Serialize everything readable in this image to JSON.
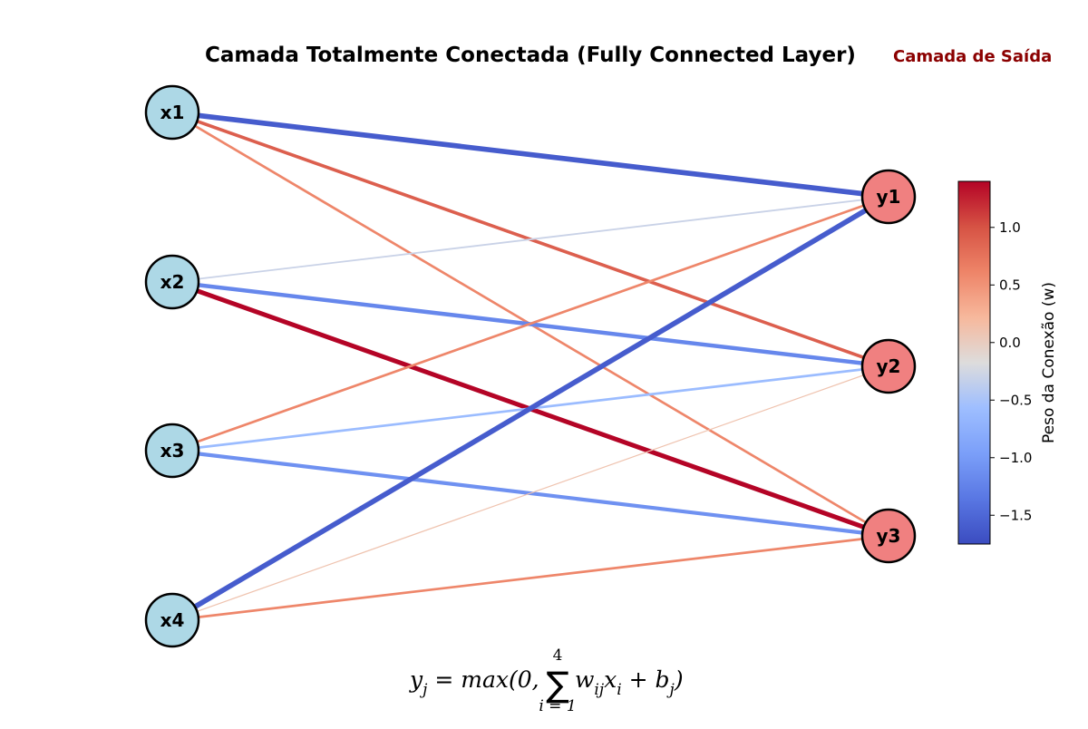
{
  "title": "Camada Totalmente Conectada (Fully Connected Layer)",
  "output_layer_label": "Camada de Saída",
  "colors": {
    "input_node_fill": "#add8e6",
    "output_node_fill": "#f08080",
    "output_label_color": "#8b0000",
    "node_stroke": "#000000"
  },
  "colorbar": {
    "label": "Peso da Conexão (w)",
    "colormap": "coolwarm",
    "vmin": -1.75,
    "vmax": 1.4,
    "ticks": [
      1.0,
      0.5,
      0.0,
      -0.5,
      -1.0,
      -1.5
    ],
    "tick_labels": [
      "1.0",
      "0.5",
      "0.0",
      "−0.5",
      "−1.0",
      "−1.5"
    ]
  },
  "input_nodes": [
    "x1",
    "x2",
    "x3",
    "x4"
  ],
  "output_nodes": [
    "y1",
    "y2",
    "y3"
  ],
  "weights": [
    {
      "from": "x1",
      "to": "y1",
      "w": -1.6
    },
    {
      "from": "x1",
      "to": "y2",
      "w": 0.9
    },
    {
      "from": "x1",
      "to": "y3",
      "w": 0.6
    },
    {
      "from": "x2",
      "to": "y1",
      "w": -0.3
    },
    {
      "from": "x2",
      "to": "y2",
      "w": -1.2
    },
    {
      "from": "x2",
      "to": "y3",
      "w": 1.4
    },
    {
      "from": "x3",
      "to": "y1",
      "w": 0.6
    },
    {
      "from": "x3",
      "to": "y2",
      "w": -0.6
    },
    {
      "from": "x3",
      "to": "y3",
      "w": -1.1
    },
    {
      "from": "x4",
      "to": "y1",
      "w": -1.6
    },
    {
      "from": "x4",
      "to": "y2",
      "w": 0.1
    },
    {
      "from": "x4",
      "to": "y3",
      "w": 0.6
    }
  ],
  "formula": {
    "lhs": "y",
    "lhs_sub": "j",
    "eq": " = max(0, ",
    "sum_upper": "4",
    "sum_lower": "i = 1",
    "term_w": "w",
    "term_w_sub": "ij",
    "term_x": "x",
    "term_x_sub": "i",
    "plus": " + b",
    "bias_sub": "j",
    "close": ")"
  }
}
